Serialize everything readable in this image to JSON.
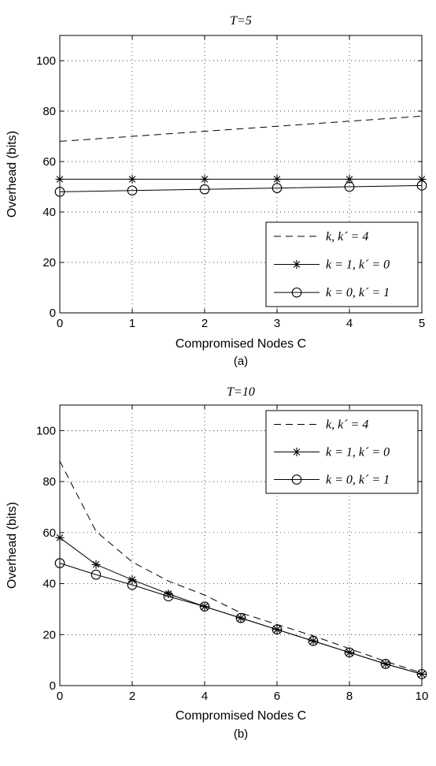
{
  "chart_data": [
    {
      "type": "line",
      "title": "T=5",
      "xlabel": "Compromised Nodes C",
      "ylabel": "Overhead (bits)",
      "caption": "(a)",
      "xlim": [
        0,
        5
      ],
      "ylim": [
        0,
        110
      ],
      "xticks": [
        0,
        1,
        2,
        3,
        4,
        5
      ],
      "yticks": [
        0,
        20,
        40,
        60,
        80,
        100
      ],
      "grid": true,
      "legend_position": "bottom-right",
      "series": [
        {
          "name": "k, k´ = 4",
          "style": "dashed",
          "marker": "none",
          "x": [
            0,
            1,
            2,
            3,
            4,
            5
          ],
          "y": [
            68,
            70,
            72,
            74,
            76,
            78
          ]
        },
        {
          "name": "k = 1, k´ = 0",
          "style": "solid",
          "marker": "star",
          "x": [
            0,
            1,
            2,
            3,
            4,
            5
          ],
          "y": [
            53,
            53,
            53,
            53,
            53,
            53
          ]
        },
        {
          "name": "k = 0, k´ = 1",
          "style": "solid",
          "marker": "circle",
          "x": [
            0,
            1,
            2,
            3,
            4,
            5
          ],
          "y": [
            48,
            48.5,
            49,
            49.5,
            50,
            50.5
          ]
        }
      ]
    },
    {
      "type": "line",
      "title": "T=10",
      "xlabel": "Compromised Nodes C",
      "ylabel": "Overhead (bits)",
      "caption": "(b)",
      "xlim": [
        0,
        10
      ],
      "ylim": [
        0,
        110
      ],
      "xticks": [
        0,
        2,
        4,
        6,
        8,
        10
      ],
      "yticks": [
        0,
        20,
        40,
        60,
        80,
        100
      ],
      "grid": true,
      "legend_position": "top-right",
      "series": [
        {
          "name": "k, k´ = 4",
          "style": "dashed",
          "marker": "none",
          "x": [
            0,
            1,
            2,
            3,
            4,
            5,
            6,
            7,
            8,
            9,
            10
          ],
          "y": [
            88,
            60.5,
            48.5,
            41,
            35.5,
            28.5,
            24,
            19.5,
            14.5,
            9.5,
            5
          ]
        },
        {
          "name": "k = 1, k´ = 0",
          "style": "solid",
          "marker": "star",
          "x": [
            0,
            1,
            2,
            3,
            4,
            5,
            6,
            7,
            8,
            9,
            10
          ],
          "y": [
            58,
            47.5,
            41.5,
            36,
            31,
            26.5,
            22,
            17.5,
            13,
            8.5,
            4.5
          ]
        },
        {
          "name": "k = 0, k´ = 1",
          "style": "solid",
          "marker": "circle",
          "x": [
            0,
            1,
            2,
            3,
            4,
            5,
            6,
            7,
            8,
            9,
            10
          ],
          "y": [
            48,
            43.5,
            39.5,
            35,
            31,
            26.5,
            22,
            17.5,
            13,
            8.5,
            4.5
          ]
        }
      ]
    }
  ]
}
